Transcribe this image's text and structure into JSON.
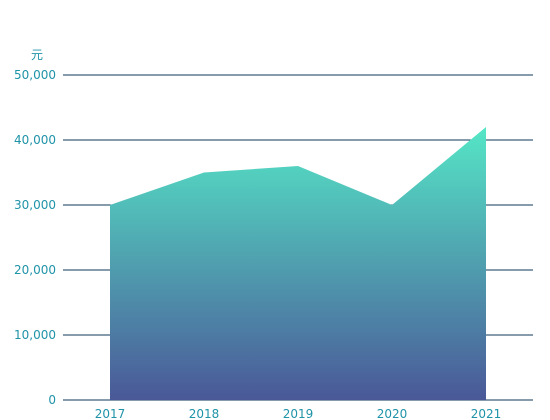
{
  "chart_data": {
    "type": "area",
    "y_unit": "元",
    "categories": [
      "2017",
      "2018",
      "2019",
      "2020",
      "2021"
    ],
    "series": [
      {
        "values": [
          30000,
          35000,
          36000,
          30000,
          42000
        ]
      }
    ],
    "ylim": [
      0,
      50000
    ],
    "yticks": [
      "0",
      "10,000",
      "20,000",
      "30,000",
      "40,000",
      "50,000"
    ],
    "grid": true,
    "colors": {
      "gradient_top": "#55e6c6",
      "gradient_bottom": "#4a5898",
      "axis_text": "#1f93a8",
      "grid": "#0e3a5a"
    }
  }
}
